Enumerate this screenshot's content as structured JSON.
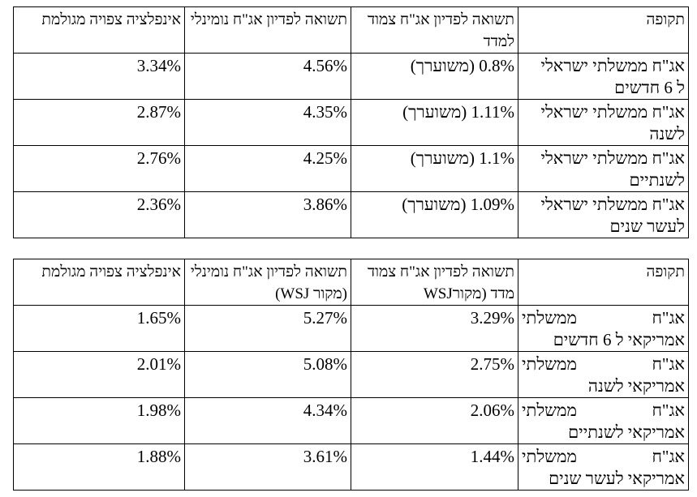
{
  "table1": {
    "headers": [
      "תקופה",
      "תשואה לפדיון אג\"ח צמוד למדד",
      "תשואה לפדיון אג\"ח נומינלי",
      "אינפלציה צפויה מגולמת"
    ],
    "rows": [
      {
        "period": [
          "אג\"ח ממשלתי ישראלי",
          "ל 6 חדשים"
        ],
        "real": "0.8% (משוערך)",
        "nominal": "4.56%",
        "inflation": "3.34%"
      },
      {
        "period": [
          "אג\"ח ממשלתי ישראלי",
          "לשנה"
        ],
        "real": "1.11% (משוערך)",
        "nominal": "4.35%",
        "inflation": "2.87%"
      },
      {
        "period": [
          "אג\"ח ממשלתי ישראלי",
          "לשנתיים"
        ],
        "real": "1.1% (משוערך)",
        "nominal": "4.25%",
        "inflation": "2.76%"
      },
      {
        "period": [
          "אג\"ח ממשלתי ישראלי",
          "לעשר שנים"
        ],
        "real": "1.09% (משוערך)",
        "nominal": "3.86%",
        "inflation": "2.36%"
      }
    ]
  },
  "table2": {
    "headers": [
      "תקופה",
      "תשואה לפדיון אג\"ח צמוד מדד (מקורWSJ",
      "תשואה לפדיון אג\"ח נומינלי (מקור WSJ)",
      "אינפלציה צפויה מגולמת"
    ],
    "rows": [
      {
        "period": [
          "אג\"ח ממשלתי",
          "אמריקאי ל 6 חדשים"
        ],
        "real": "3.29%",
        "nominal": "5.27%",
        "inflation": "1.65%"
      },
      {
        "period": [
          "אג\"ח ממשלתי",
          "אמריקאי לשנה"
        ],
        "real": "2.75%",
        "nominal": "5.08%",
        "inflation": "2.01%"
      },
      {
        "period": [
          "אג\"ח ממשלתי",
          "אמריקאי לשנתיים"
        ],
        "real": "2.06%",
        "nominal": "4.34%",
        "inflation": "1.98%"
      },
      {
        "period": [
          "אג\"ח ממשלתי",
          "אמריקאי לעשר שנים"
        ],
        "real": "1.44%",
        "nominal": "3.61%",
        "inflation": "1.88%"
      }
    ]
  }
}
